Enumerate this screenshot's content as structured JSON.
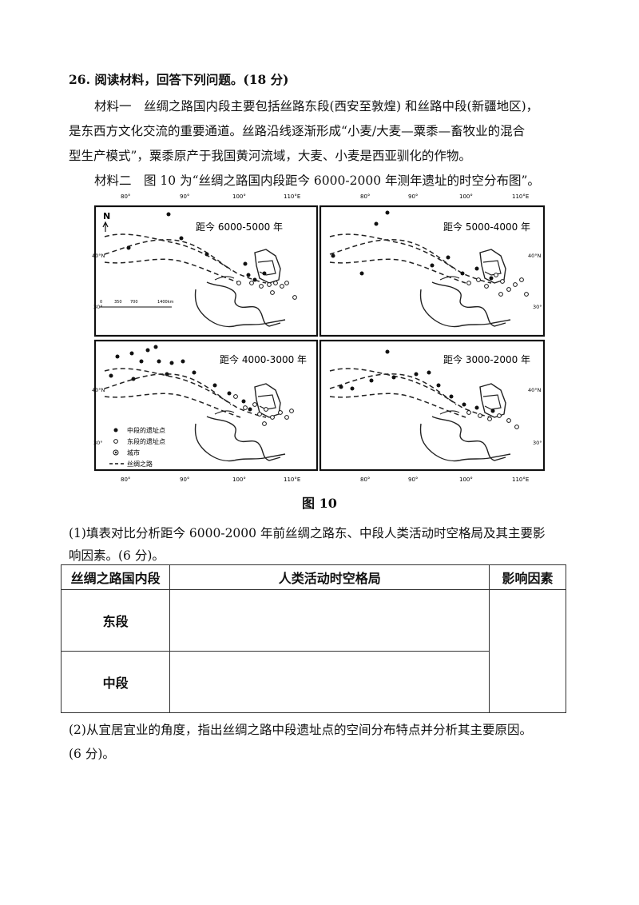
{
  "question": {
    "header": "26. 阅读材料，回答下列问题。(18 分)",
    "material1_lines": [
      "材料一　丝绸之路国内段主要包括丝路东段(西安至敦煌) 和丝路中段(新疆地区)，",
      "是东西方文化交流的重要通道。丝路沿线逐渐形成“小麦/大麦—粟黍—畜牧业的混合",
      "型生产模式”，粟黍原产于我国黄河流域，大麦、小麦是西亚驯化的作物。"
    ],
    "material2": "材料二　图 10 为“丝绸之路国内段距今 6000-2000 年测年遗址的时空分布图”。"
  },
  "figure": {
    "caption": "图 10",
    "panel_titles": [
      "距今 6000-5000 年",
      "距今 5000-4000 年",
      "距今 4000-3000 年",
      "距今 3000-2000 年"
    ],
    "lon_labels_top": [
      "80°",
      "90°",
      "100°",
      "110°E"
    ],
    "lon_labels_bottom": [
      "80°",
      "90°",
      "100°",
      "110°E"
    ],
    "lat_labels": [
      "40°N",
      "30°"
    ],
    "north_label": "N",
    "scale_labels": [
      "0",
      "350",
      "700",
      "1400km"
    ],
    "legend": [
      {
        "symbol": "filled-dot",
        "label": "中段的遗址点"
      },
      {
        "symbol": "open-dot",
        "label": "东段的遗址点"
      },
      {
        "symbol": "city",
        "label": "城市"
      },
      {
        "symbol": "dashed-line",
        "label": "丝绸之路"
      }
    ]
  },
  "sub1": {
    "lines": [
      "(1)填表对比分析距今 6000-2000 年前丝绸之路东、中段人类活动时空格局及其主要影",
      "响因素。(6 分)。"
    ]
  },
  "table": {
    "headers": [
      "丝绸之路国内段",
      "人类活动时空格局",
      "影响因素"
    ],
    "rows": [
      "东段",
      "中段"
    ]
  },
  "sub2": {
    "lines": [
      "(2)从宜居宜业的角度，指出丝绸之路中段遗址点的空间分布特点并分析其主要原因。",
      "(6 分)。"
    ]
  }
}
